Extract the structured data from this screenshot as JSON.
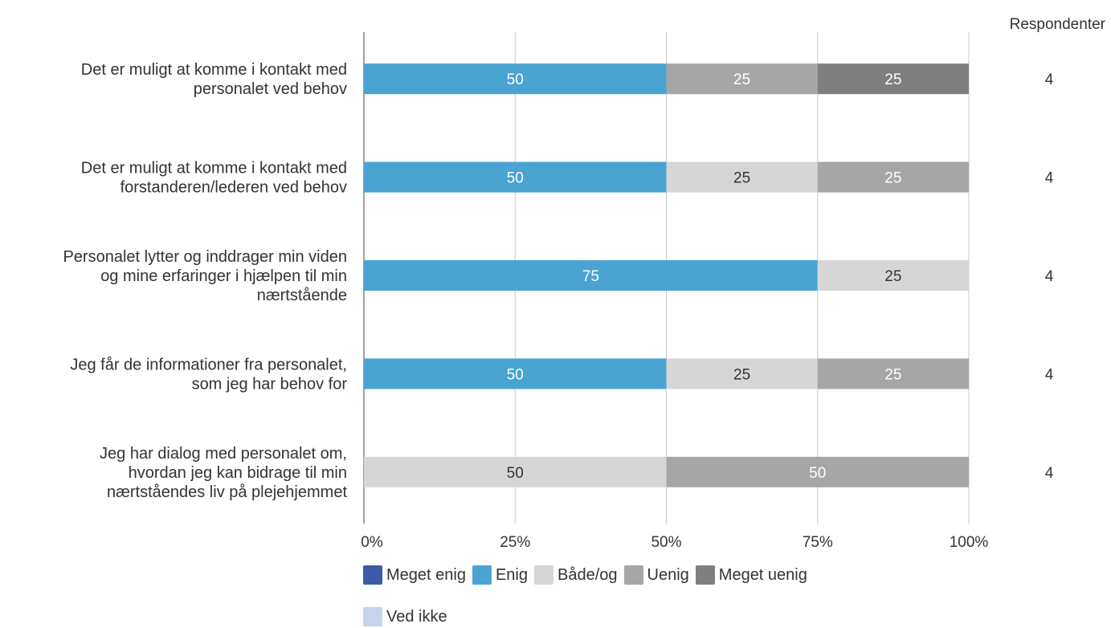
{
  "chart_data": {
    "type": "bar",
    "orientation": "horizontal",
    "stacked": "percent",
    "categories": [
      [
        "Det er muligt at komme i kontakt med",
        "personalet ved behov"
      ],
      [
        "Det er muligt at komme i kontakt med",
        "forstanderen/lederen ved behov"
      ],
      [
        "Personalet lytter og inddrager min viden",
        "og mine erfaringer i hjælpen til min",
        "nærtstående"
      ],
      [
        "Jeg får de informationer fra personalet,",
        "som jeg har behov for"
      ],
      [
        "Jeg har dialog med personalet om,",
        "hvordan jeg kan bidrage til min",
        "nærtståendes liv på plejehjemmet"
      ]
    ],
    "series": [
      {
        "name": "Meget enig",
        "color": "#3b5ba7",
        "text_color": "#ffffff",
        "values": [
          0,
          0,
          0,
          0,
          0
        ]
      },
      {
        "name": "Enig",
        "color": "#4aa3d0",
        "text_color": "#ffffff",
        "values": [
          50,
          50,
          75,
          50,
          0
        ]
      },
      {
        "name": "Både/og",
        "color": "#d6d6d6",
        "text_color": "#333333",
        "values": [
          0,
          25,
          25,
          25,
          50
        ]
      },
      {
        "name": "Uenig",
        "color": "#a6a6a6",
        "text_color": "#ffffff",
        "values": [
          25,
          25,
          0,
          25,
          50
        ]
      },
      {
        "name": "Meget uenig",
        "color": "#7f7f7f",
        "text_color": "#ffffff",
        "values": [
          25,
          0,
          0,
          0,
          0
        ]
      },
      {
        "name": "Ved ikke",
        "color": "#c5d4ec",
        "text_color": "#333333",
        "values": [
          0,
          0,
          0,
          0,
          0
        ]
      }
    ],
    "x_ticks": [
      "0%",
      "25%",
      "50%",
      "75%",
      "100%"
    ],
    "xlim": [
      0,
      100
    ],
    "respondents_header": "Respondenter",
    "respondents": [
      "4",
      "4",
      "4",
      "4",
      "4"
    ],
    "grid": true,
    "legend_position": "bottom-center"
  }
}
